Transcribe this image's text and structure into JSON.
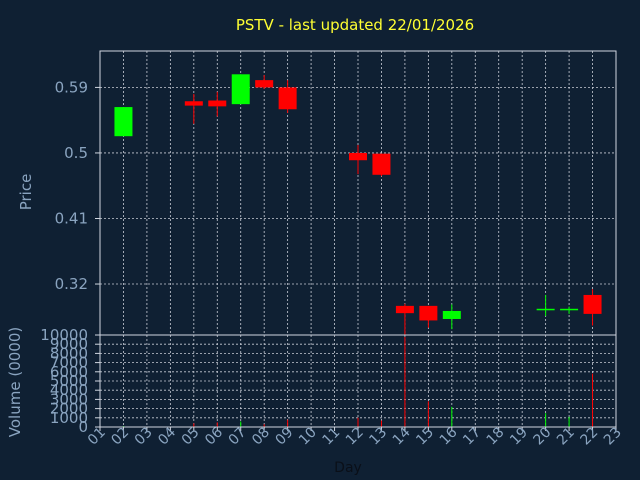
{
  "colors": {
    "background": "#0f2033",
    "axis": "#d0d6e0",
    "grid": "#c8ccd6",
    "text": "#8aa4c0",
    "title": "#ffff33",
    "up": "#00ff00",
    "down": "#ff0000"
  },
  "chart_data": {
    "type": "candlestick",
    "title": "PSTV - last updated 22/01/2026",
    "xlabel": "Day",
    "price_ylabel": "Price",
    "volume_ylabel": "Volume (0000)",
    "x_ticks": [
      "01",
      "02",
      "03",
      "04",
      "05",
      "06",
      "07",
      "08",
      "09",
      "10",
      "11",
      "12",
      "13",
      "14",
      "15",
      "16",
      "17",
      "18",
      "19",
      "20",
      "21",
      "22",
      "23"
    ],
    "price_ticks": [
      0.32,
      0.41,
      0.5,
      0.59
    ],
    "price_tick_labels": [
      "0.32",
      "0.41",
      "0.5",
      "0.59"
    ],
    "price_ylim": [
      0.25,
      0.64
    ],
    "volume_ticks": [
      0,
      1000,
      2000,
      3000,
      4000,
      5000,
      6000,
      7000,
      8000,
      9000,
      10000
    ],
    "volume_tick_labels": [
      "0",
      "1000",
      "2000",
      "3000",
      "4000",
      "5000",
      "6000",
      "7000",
      "8000",
      "9000",
      "10000"
    ],
    "volume_ylim": [
      0,
      10000
    ],
    "xlim": [
      1,
      23
    ],
    "grid": true,
    "candles": [
      {
        "day": 2,
        "open": 0.523,
        "high": 0.563,
        "low": 0.523,
        "close": 0.563
      },
      {
        "day": 5,
        "open": 0.571,
        "high": 0.581,
        "low": 0.54,
        "close": 0.565
      },
      {
        "day": 6,
        "open": 0.572,
        "high": 0.584,
        "low": 0.55,
        "close": 0.564
      },
      {
        "day": 7,
        "open": 0.567,
        "high": 0.608,
        "low": 0.567,
        "close": 0.608
      },
      {
        "day": 8,
        "open": 0.6,
        "high": 0.607,
        "low": 0.588,
        "close": 0.59
      },
      {
        "day": 9,
        "open": 0.59,
        "high": 0.6,
        "low": 0.555,
        "close": 0.56
      },
      {
        "day": 12,
        "open": 0.5,
        "high": 0.511,
        "low": 0.471,
        "close": 0.49
      },
      {
        "day": 13,
        "open": 0.499,
        "high": 0.499,
        "low": 0.468,
        "close": 0.47
      },
      {
        "day": 14,
        "open": 0.29,
        "high": 0.293,
        "low": 0.25,
        "close": 0.28
      },
      {
        "day": 15,
        "open": 0.29,
        "high": 0.29,
        "low": 0.26,
        "close": 0.27
      },
      {
        "day": 16,
        "open": 0.272,
        "high": 0.292,
        "low": 0.258,
        "close": 0.283
      },
      {
        "day": 20,
        "open": 0.285,
        "high": 0.305,
        "low": 0.276,
        "close": 0.286
      },
      {
        "day": 21,
        "open": 0.284,
        "high": 0.289,
        "low": 0.279,
        "close": 0.286
      },
      {
        "day": 22,
        "open": 0.305,
        "high": 0.313,
        "low": 0.263,
        "close": 0.279
      }
    ],
    "volumes": [
      {
        "day": 2,
        "value": 100,
        "dir": "up"
      },
      {
        "day": 5,
        "value": 400,
        "dir": "down"
      },
      {
        "day": 6,
        "value": 500,
        "dir": "down"
      },
      {
        "day": 7,
        "value": 600,
        "dir": "up"
      },
      {
        "day": 8,
        "value": 300,
        "dir": "down"
      },
      {
        "day": 9,
        "value": 800,
        "dir": "down"
      },
      {
        "day": 12,
        "value": 1000,
        "dir": "down"
      },
      {
        "day": 13,
        "value": 700,
        "dir": "down"
      },
      {
        "day": 14,
        "value": 9800,
        "dir": "down"
      },
      {
        "day": 15,
        "value": 2800,
        "dir": "down"
      },
      {
        "day": 16,
        "value": 2200,
        "dir": "up"
      },
      {
        "day": 20,
        "value": 1500,
        "dir": "up"
      },
      {
        "day": 21,
        "value": 1100,
        "dir": "up"
      },
      {
        "day": 22,
        "value": 5800,
        "dir": "down"
      }
    ]
  }
}
